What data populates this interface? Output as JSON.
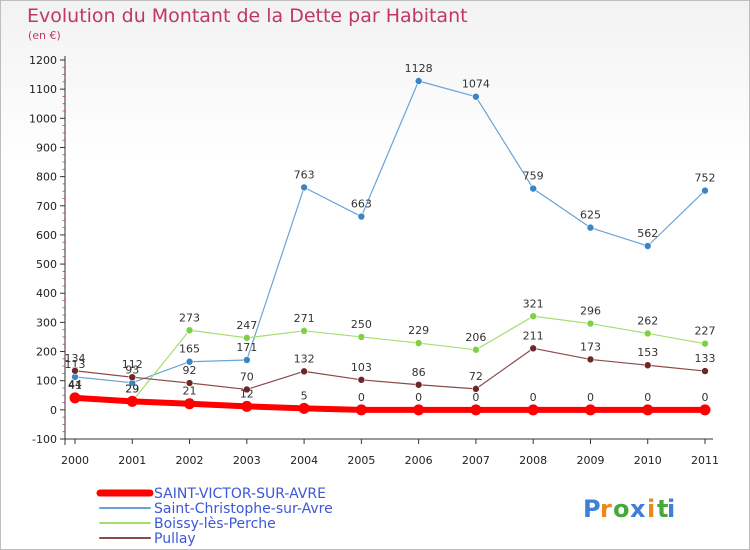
{
  "title": "Evolution du Montant de la Dette par Habitant",
  "unit": "(en €)",
  "brand": {
    "letters": [
      "P",
      "r",
      "o",
      "x",
      "i",
      "t",
      "i"
    ],
    "colors": [
      "#3f7fd6",
      "#e98a1f",
      "#47a83c",
      "#3f7fd6",
      "#e98a1f",
      "#47a83c",
      "#3f7fd6"
    ]
  },
  "chart_data": {
    "type": "line",
    "x": [
      "2000",
      "2001",
      "2002",
      "2003",
      "2004",
      "2005",
      "2006",
      "2007",
      "2008",
      "2009",
      "2010",
      "2011"
    ],
    "ylim": [
      -100,
      1200
    ],
    "yticks": [
      -100,
      0,
      100,
      200,
      300,
      400,
      500,
      600,
      700,
      800,
      900,
      1000,
      1100,
      1200
    ],
    "grid": false,
    "legend": "bottom-left",
    "series": [
      {
        "name": "Saint-Christophe-sur-Avre",
        "color": "#6aa3d8",
        "marker": "#3a85c8",
        "width": 1.2,
        "values": [
          113,
          93,
          165,
          171,
          763,
          663,
          1128,
          1074,
          759,
          625,
          562,
          752
        ],
        "labels": [
          "113",
          "93",
          "165",
          "171",
          "763",
          "663",
          "1128",
          "1074",
          "759",
          "625",
          "562",
          "752"
        ]
      },
      {
        "name": "Boissy-lès-Perche",
        "color": "#a5dd72",
        "marker": "#7ed044",
        "width": 1.2,
        "values": [
          44,
          29,
          273,
          247,
          271,
          250,
          229,
          206,
          321,
          296,
          262,
          227
        ],
        "labels": [
          "44",
          "29",
          "273",
          "247",
          "271",
          "250",
          "229",
          "206",
          "321",
          "296",
          "262",
          "227"
        ]
      },
      {
        "name": "Pullay",
        "color": "#8c4a4a",
        "marker": "#6e2626",
        "width": 1.2,
        "values": [
          134,
          112,
          92,
          70,
          132,
          103,
          86,
          72,
          211,
          173,
          153,
          133
        ],
        "labels": [
          "134",
          "112",
          "92",
          "70",
          "132",
          "103",
          "86",
          "72",
          "211",
          "173",
          "153",
          "133"
        ]
      },
      {
        "name": "SAINT-VICTOR-SUR-AVRE",
        "color": "#ff0000",
        "marker": "#ff0000",
        "width": 6,
        "values": [
          41,
          29,
          21,
          12,
          5,
          0,
          0,
          0,
          0,
          0,
          0,
          0
        ],
        "labels": [
          "41",
          "29",
          "21",
          "12",
          "5",
          "0",
          "0",
          "0",
          "0",
          "0",
          "0",
          "0"
        ]
      }
    ],
    "legend_order": [
      3,
      0,
      1,
      2
    ]
  }
}
